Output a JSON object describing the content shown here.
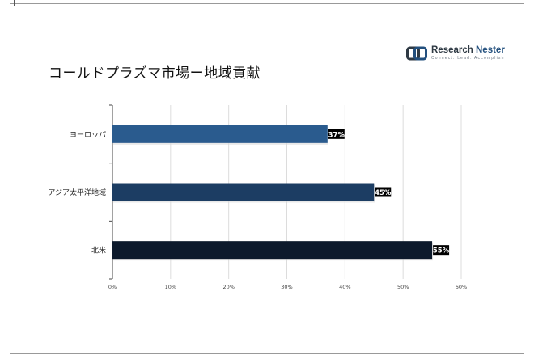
{
  "header": {
    "title": "コールドプラズマ市場ー地域貢献"
  },
  "logo": {
    "name_part1": "Research",
    "name_part2": " Nester",
    "tagline": "Connect. Lead. Accomplish",
    "icon": "research-nester-logo-icon"
  },
  "colors": {
    "europe_bar": "#2a5b8e",
    "asia_bar": "#1c3d63",
    "north_america_bar": "#0d1a2c",
    "grid": "#dcdcdc",
    "axis": "#444444"
  },
  "chart_data": {
    "type": "bar",
    "orientation": "horizontal",
    "categories": [
      "ヨーロッパ",
      "アジア太平洋地域",
      "北米"
    ],
    "values": [
      37,
      45,
      55
    ],
    "data_labels": [
      "37%",
      "45%",
      "55%"
    ],
    "xlim": [
      0,
      60
    ],
    "x_ticks": [
      "0%",
      "10%",
      "20%",
      "30%",
      "40%",
      "50%",
      "60%"
    ],
    "grid": true,
    "title": "",
    "xlabel": "",
    "ylabel": ""
  }
}
